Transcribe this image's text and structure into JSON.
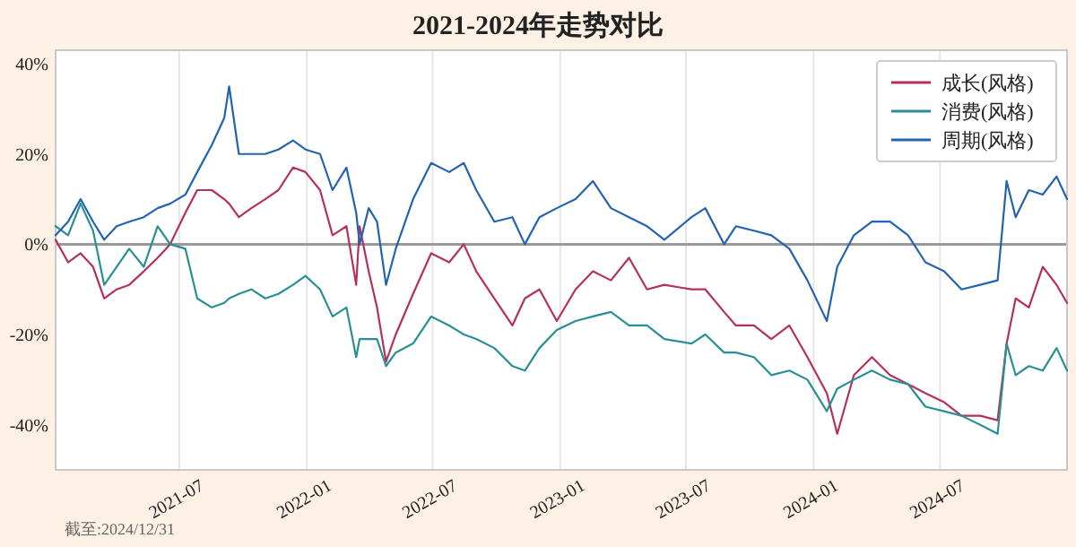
{
  "chart_data": {
    "type": "line",
    "title": "2021-2024年走势对比",
    "x": [
      "2021-01-04",
      "2021-01-22",
      "2021-02-09",
      "2021-02-27",
      "2021-03-15",
      "2021-04-02",
      "2021-04-20",
      "2021-05-11",
      "2021-05-31",
      "2021-06-18",
      "2021-07-10",
      "2021-07-27",
      "2021-08-17",
      "2021-09-04",
      "2021-09-11",
      "2021-09-25",
      "2021-10-13",
      "2021-11-02",
      "2021-11-21",
      "2021-12-12",
      "2021-12-30",
      "2022-01-20",
      "2022-02-07",
      "2022-02-27",
      "2022-03-13",
      "2022-03-18",
      "2022-03-31",
      "2022-04-12",
      "2022-04-25",
      "2022-05-09",
      "2022-06-03",
      "2022-06-29",
      "2022-07-25",
      "2022-08-15",
      "2022-09-02",
      "2022-09-28",
      "2022-10-24",
      "2022-11-11",
      "2022-12-02",
      "2022-12-27",
      "2023-01-23",
      "2023-02-17",
      "2023-03-15",
      "2023-04-10",
      "2023-05-06",
      "2023-05-31",
      "2023-07-09",
      "2023-07-29",
      "2023-08-25",
      "2023-09-11",
      "2023-10-07",
      "2023-11-01",
      "2023-11-27",
      "2023-12-23",
      "2024-01-20",
      "2024-02-04",
      "2024-02-28",
      "2024-03-25",
      "2024-04-20",
      "2024-05-16",
      "2024-06-10",
      "2024-07-07",
      "2024-08-01",
      "2024-08-28",
      "2024-09-22",
      "2024-10-05",
      "2024-10-18",
      "2024-11-06",
      "2024-11-26",
      "2024-12-16",
      "2024-12-31"
    ],
    "series": [
      {
        "name": "成长(风格)",
        "color": "#b5315a",
        "values": [
          1,
          -4,
          -2,
          -5,
          -12,
          -10,
          -9,
          -6,
          -3,
          0,
          7,
          12,
          12,
          10,
          9,
          6,
          8,
          10,
          12,
          17,
          16,
          12,
          2,
          4,
          -9,
          4,
          -6,
          -14,
          -26,
          -20,
          -11,
          -2,
          -4,
          0,
          -6,
          -12,
          -18,
          -12,
          -10,
          -17,
          -10,
          -6,
          -8,
          -3,
          -10,
          -9,
          -10,
          -10,
          -15,
          -18,
          -18,
          -21,
          -18,
          -25,
          -33,
          -42,
          -29,
          -25,
          -29,
          -31,
          -33,
          -35,
          -38,
          -38,
          -39,
          -22,
          -12,
          -14,
          -5,
          -9,
          -13
        ]
      },
      {
        "name": "消费(风格)",
        "color": "#2a8f94",
        "values": [
          4,
          2,
          9,
          3,
          -9,
          -5,
          -1,
          -5,
          4,
          0,
          -1,
          -12,
          -14,
          -13,
          -12,
          -11,
          -10,
          -12,
          -11,
          -9,
          -7,
          -10,
          -16,
          -14,
          -25,
          -21,
          -21,
          -21,
          -27,
          -24,
          -22,
          -16,
          -18,
          -20,
          -21,
          -23,
          -27,
          -28,
          -23,
          -19,
          -17,
          -16,
          -15,
          -18,
          -18,
          -21,
          -22,
          -20,
          -24,
          -24,
          -25,
          -29,
          -28,
          -30,
          -37,
          -32,
          -30,
          -28,
          -30,
          -31,
          -36,
          -37,
          -38,
          -40,
          -42,
          -22,
          -29,
          -27,
          -28,
          -23,
          -28
        ]
      },
      {
        "name": "周期(风格)",
        "color": "#2463b0",
        "values": [
          2,
          5,
          10,
          5,
          1,
          4,
          5,
          6,
          8,
          9,
          11,
          16,
          22,
          28,
          35,
          20,
          20,
          20,
          21,
          23,
          21,
          20,
          12,
          17,
          7,
          0,
          8,
          5,
          -9,
          -1,
          10,
          18,
          16,
          18,
          12,
          5,
          6,
          0,
          6,
          8,
          10,
          14,
          8,
          6,
          4,
          1,
          6,
          8,
          0,
          4,
          3,
          2,
          -1,
          -8,
          -17,
          -5,
          2,
          5,
          5,
          2,
          -4,
          -6,
          -10,
          -9,
          -8,
          14,
          6,
          12,
          11,
          15,
          10
        ]
      }
    ],
    "xlim": [
      "2021-01-04",
      "2024-12-31"
    ],
    "xticks": [
      {
        "value": "2021-07-01",
        "label": "2021-07"
      },
      {
        "value": "2022-01-01",
        "label": "2022-01"
      },
      {
        "value": "2022-07-01",
        "label": "2022-07"
      },
      {
        "value": "2023-01-01",
        "label": "2023-01"
      },
      {
        "value": "2023-07-01",
        "label": "2023-07"
      },
      {
        "value": "2024-01-01",
        "label": "2024-01"
      },
      {
        "value": "2024-07-01",
        "label": "2024-07"
      }
    ],
    "ylim": [
      -50,
      43
    ],
    "yticks": [
      {
        "value": -40,
        "label": "-40%"
      },
      {
        "value": -20,
        "label": "-20%"
      },
      {
        "value": 0,
        "label": "0%"
      },
      {
        "value": 20,
        "label": "20%"
      },
      {
        "value": 40,
        "label": "40%"
      }
    ],
    "grid": "x",
    "legend": "top right",
    "ref_lines": [
      {
        "axis": "y",
        "value": 0,
        "color": "#999999"
      }
    ],
    "annotations": [
      "截至:2024/12/31"
    ]
  }
}
